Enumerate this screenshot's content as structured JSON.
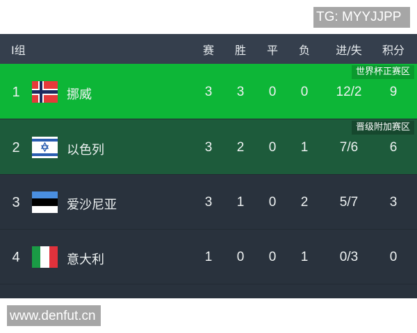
{
  "watermarks": {
    "tg": "TG: MYYJJPP",
    "site": "www.denfut.cn"
  },
  "header": {
    "group": "I组",
    "cols": [
      "赛",
      "胜",
      "平",
      "负",
      "进/失",
      "积分"
    ]
  },
  "colors": {
    "qualify": "#0db637",
    "playoff": "#1d5b3b",
    "default": "#29323d",
    "header": "#353f4d"
  },
  "rows": [
    {
      "rank": "1",
      "flag": "norway-flag",
      "name": "挪威",
      "played": "3",
      "won": "3",
      "drawn": "0",
      "lost": "0",
      "goals": "12/2",
      "points": "9",
      "badge": "世界杯正赛区"
    },
    {
      "rank": "2",
      "flag": "israel-flag",
      "name": "以色列",
      "played": "3",
      "won": "2",
      "drawn": "0",
      "lost": "1",
      "goals": "7/6",
      "points": "6",
      "badge": "晋级附加赛区"
    },
    {
      "rank": "3",
      "flag": "estonia-flag",
      "name": "爱沙尼亚",
      "played": "3",
      "won": "1",
      "drawn": "0",
      "lost": "2",
      "goals": "5/7",
      "points": "3"
    },
    {
      "rank": "4",
      "flag": "italy-flag",
      "name": "意大利",
      "played": "1",
      "won": "0",
      "drawn": "0",
      "lost": "1",
      "goals": "0/3",
      "points": "0"
    }
  ]
}
